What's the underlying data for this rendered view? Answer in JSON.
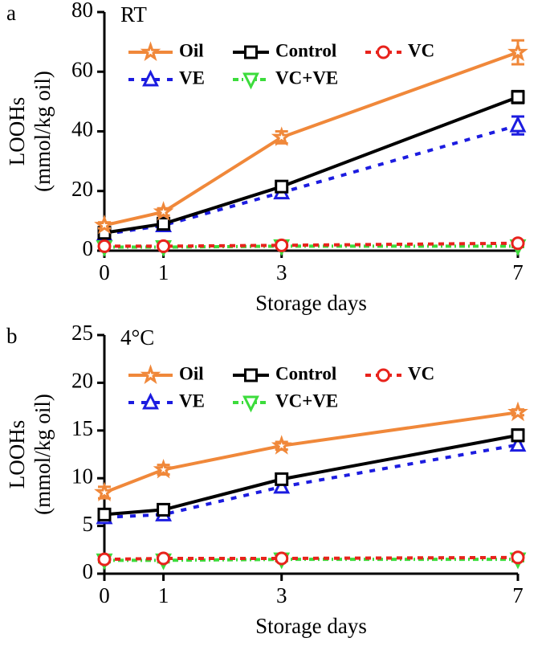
{
  "chart_data": [
    {
      "type": "line",
      "panel_label": "a",
      "title": "RT",
      "xlabel": "Storage days",
      "ylabel": [
        "LOOHs",
        "(mmol/kg oil)"
      ],
      "x": [
        0,
        1,
        3,
        7
      ],
      "xlim": [
        0,
        7
      ],
      "xticks": [
        0,
        1,
        3,
        7
      ],
      "ylim": [
        0,
        80
      ],
      "yticks": [
        0,
        20,
        40,
        60,
        80
      ],
      "legend": "upper left",
      "series": [
        {
          "name": "Oil",
          "color": "#f0883a",
          "marker": "star",
          "dash": "solid",
          "values": [
            8.5,
            13,
            38,
            66.5
          ],
          "errors": [
            1,
            1.2,
            2,
            4
          ]
        },
        {
          "name": "Control",
          "color": "#000000",
          "marker": "square",
          "dash": "solid",
          "values": [
            6,
            9,
            21.5,
            51.5
          ],
          "errors": [
            0.8,
            1,
            1.5,
            2
          ]
        },
        {
          "name": "VC",
          "color": "#e8231c",
          "marker": "circle",
          "dash": "dashed",
          "values": [
            1.5,
            1.5,
            1.8,
            2.5
          ],
          "errors": [
            0.3,
            0.3,
            0.3,
            0.4
          ]
        },
        {
          "name": "VE",
          "color": "#1c1ce0",
          "marker": "triangle-up",
          "dash": "dotted",
          "values": [
            5.5,
            8.5,
            19.5,
            42
          ],
          "errors": [
            0.8,
            1,
            1.5,
            3
          ]
        },
        {
          "name": "VC+VE",
          "color": "#3cdc3c",
          "marker": "triangle-down",
          "dash": "dashdot",
          "values": [
            1.2,
            1.2,
            1.5,
            1.5
          ],
          "errors": [
            0.3,
            0.3,
            0.3,
            0.3
          ]
        }
      ]
    },
    {
      "type": "line",
      "panel_label": "b",
      "title": "4°C",
      "xlabel": "Storage days",
      "ylabel": [
        "LOOHs",
        "(mmol/kg oil)"
      ],
      "x": [
        0,
        1,
        3,
        7
      ],
      "xlim": [
        0,
        7
      ],
      "xticks": [
        0,
        1,
        3,
        7
      ],
      "ylim": [
        0,
        25
      ],
      "yticks": [
        0,
        5,
        10,
        15,
        20,
        25
      ],
      "legend": "upper left",
      "series": [
        {
          "name": "Oil",
          "color": "#f0883a",
          "marker": "star",
          "dash": "solid",
          "values": [
            8.5,
            10.9,
            13.4,
            16.9
          ],
          "errors": [
            0.6,
            0.5,
            0.4,
            0.3
          ]
        },
        {
          "name": "Control",
          "color": "#000000",
          "marker": "square",
          "dash": "solid",
          "values": [
            6.2,
            6.7,
            9.9,
            14.5
          ],
          "errors": [
            0.3,
            0.4,
            0.5,
            0.6
          ]
        },
        {
          "name": "VC",
          "color": "#e8231c",
          "marker": "circle",
          "dash": "dashed",
          "values": [
            1.5,
            1.6,
            1.6,
            1.7
          ],
          "errors": [
            0.2,
            0.2,
            0.2,
            0.2
          ]
        },
        {
          "name": "VE",
          "color": "#1c1ce0",
          "marker": "triangle-up",
          "dash": "dotted",
          "values": [
            5.9,
            6.2,
            9.1,
            13.5
          ],
          "errors": [
            0.3,
            0.4,
            0.5,
            0.5
          ]
        },
        {
          "name": "VC+VE",
          "color": "#3cdc3c",
          "marker": "triangle-down",
          "dash": "dashdot",
          "values": [
            1.4,
            1.4,
            1.5,
            1.5
          ],
          "errors": [
            0.2,
            0.2,
            0.2,
            0.2
          ]
        }
      ]
    }
  ]
}
